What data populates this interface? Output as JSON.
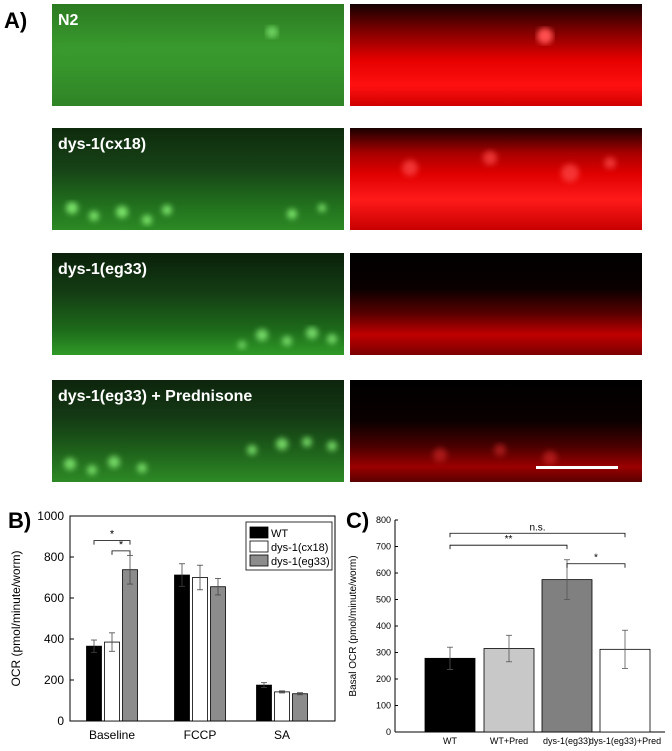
{
  "panel_a": {
    "letter": "A)",
    "rows": [
      {
        "label": "N2"
      },
      {
        "label": "dys-1(cx18)"
      },
      {
        "label": "dys-1(eg33)"
      },
      {
        "label": "dys-1(eg33) + Prednisone"
      }
    ],
    "colors": {
      "green": "#3fae3f",
      "red": "#ff0000"
    }
  },
  "panel_b": {
    "letter": "B)",
    "chart_data": {
      "type": "bar",
      "categories": [
        "Baseline",
        "FCCP",
        "SA"
      ],
      "ylabel": "OCR (pmol/minute/worm)",
      "ylim": [
        0,
        1000
      ],
      "yticks": [
        0,
        200,
        400,
        600,
        800,
        1000
      ],
      "legend_position": "top-right",
      "series": [
        {
          "name": "WT",
          "color": "#000000",
          "values": [
            365,
            712,
            175
          ],
          "errors": [
            30,
            55,
            12
          ]
        },
        {
          "name": "dys-1(cx18)",
          "color": "#ffffff",
          "values": [
            385,
            700,
            142
          ],
          "errors": [
            45,
            60,
            5
          ]
        },
        {
          "name": "dys-1(eg33)",
          "color": "#8c8c8c",
          "values": [
            738,
            655,
            133
          ],
          "errors": [
            70,
            40,
            5
          ]
        }
      ],
      "significance": [
        {
          "text": "*",
          "from_series": 0,
          "to_series": 2,
          "category": 0,
          "y": 880
        },
        {
          "text": "*",
          "from_series": 1,
          "to_series": 2,
          "category": 0,
          "y": 830
        }
      ]
    }
  },
  "panel_c": {
    "letter": "C)",
    "chart_data": {
      "type": "bar",
      "categories": [
        "WT",
        "WT+Pred",
        "dys-1(eg33)",
        "dys-1(eg33)+Pred"
      ],
      "values": [
        278,
        315,
        575,
        312
      ],
      "errors": [
        42,
        50,
        75,
        72
      ],
      "colors": [
        "#000000",
        "#c8c8c8",
        "#808080",
        "#ffffff"
      ],
      "ylabel": "Basal OCR (pmol/minute/worm)",
      "ylim": [
        0,
        800
      ],
      "yticks": [
        0,
        100,
        200,
        300,
        400,
        500,
        600,
        700,
        800
      ],
      "significance": [
        {
          "text": "n.s.",
          "from": 0,
          "to": 3,
          "y": 750
        },
        {
          "text": "**",
          "from": 0,
          "to": 2,
          "y": 705
        },
        {
          "text": "*",
          "from": 2,
          "to": 3,
          "y": 635
        }
      ]
    }
  }
}
